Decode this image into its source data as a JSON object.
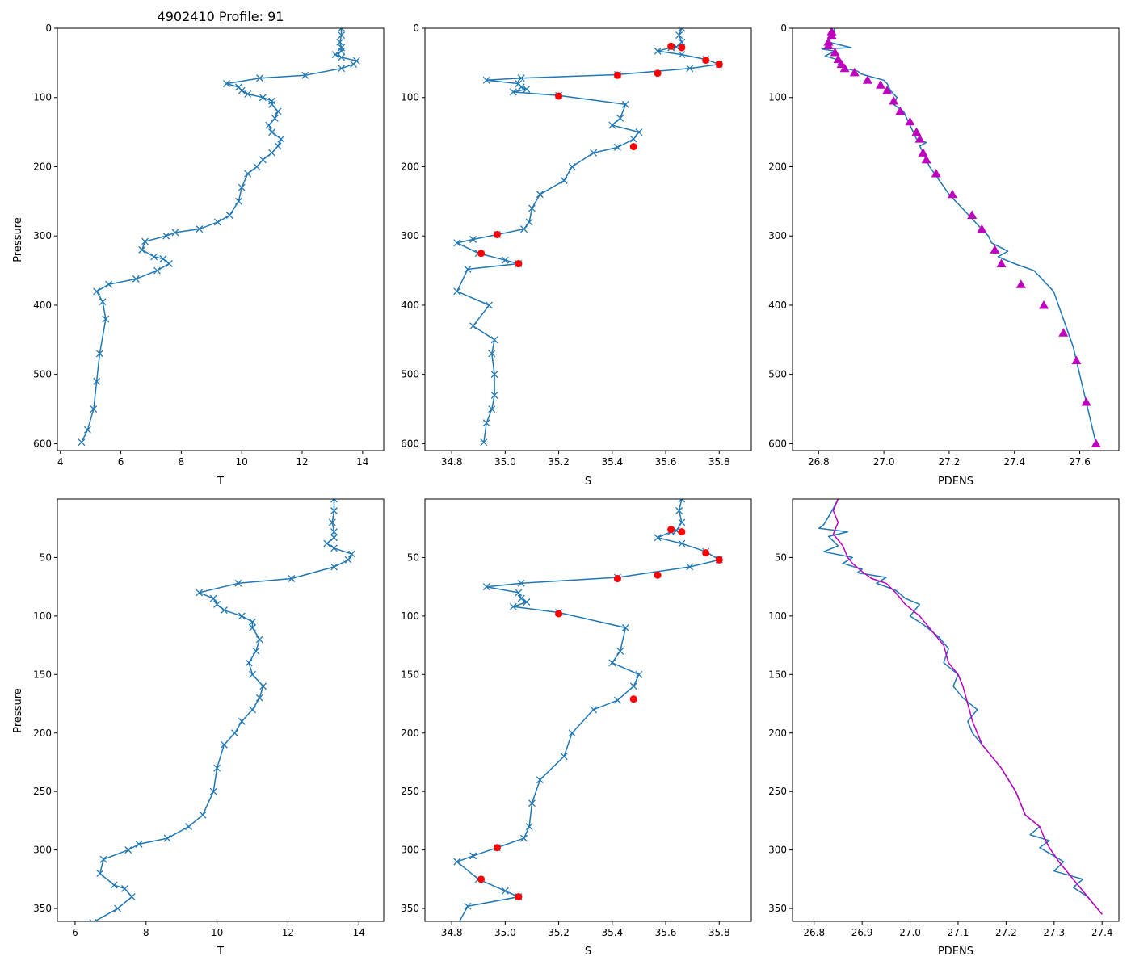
{
  "figure": {
    "title": "4902410 Profile: 91"
  },
  "styles": {
    "line": "#1f77b4",
    "marker_x": "#1f77b4",
    "flag": "#ff0000",
    "density_overlay": "#bf00bf"
  },
  "chart_data": [
    {
      "id": "temp-full",
      "type": "line",
      "title": "4902410 Profile: 91",
      "xlabel": "T",
      "ylabel": "Pressure",
      "xlim": [
        3.9,
        14.7
      ],
      "ylim": [
        610,
        0
      ],
      "xticks": [
        4,
        6,
        8,
        10,
        12,
        14
      ],
      "yticks": [
        0,
        100,
        200,
        300,
        400,
        500,
        600
      ],
      "xtick_labels": [
        "4",
        "6",
        "8",
        "10",
        "12",
        "14"
      ],
      "ytick_labels": [
        "0",
        "100",
        "200",
        "300",
        "400",
        "500",
        "600"
      ],
      "series": [
        {
          "name": "T",
          "marker": "x",
          "x": [
            13.3,
            13.3,
            13.25,
            13.3,
            13.3,
            13.1,
            13.3,
            13.8,
            13.7,
            13.3,
            12.1,
            10.6,
            9.5,
            9.9,
            10.0,
            10.2,
            10.7,
            11.0,
            11.0,
            11.2,
            11.1,
            10.9,
            11.0,
            11.3,
            11.2,
            11.0,
            10.7,
            10.5,
            10.2,
            10.0,
            9.9,
            9.6,
            9.2,
            8.6,
            7.8,
            7.5,
            6.8,
            6.7,
            7.1,
            7.4,
            7.6,
            7.2,
            6.5,
            5.6,
            5.2,
            5.4,
            5.5,
            5.3,
            5.2,
            5.1,
            4.9,
            4.7
          ],
          "y": [
            0,
            10,
            20,
            28,
            33,
            38,
            42,
            47,
            52,
            58,
            68,
            72,
            80,
            85,
            90,
            95,
            100,
            105,
            110,
            120,
            130,
            140,
            150,
            160,
            170,
            180,
            190,
            200,
            210,
            230,
            250,
            270,
            280,
            290,
            295,
            300,
            308,
            320,
            330,
            333,
            340,
            350,
            362,
            370,
            380,
            395,
            420,
            470,
            510,
            550,
            580,
            598
          ]
        }
      ]
    },
    {
      "id": "sal-full",
      "type": "line",
      "title": "",
      "xlabel": "S",
      "ylabel": "",
      "xlim": [
        34.7,
        35.92
      ],
      "ylim": [
        610,
        0
      ],
      "xticks": [
        34.8,
        35.0,
        35.2,
        35.4,
        35.6,
        35.8
      ],
      "yticks": [
        0,
        100,
        200,
        300,
        400,
        500,
        600
      ],
      "xtick_labels": [
        "34.8",
        "35.0",
        "35.2",
        "35.4",
        "35.6",
        "35.8"
      ],
      "ytick_labels": [
        "0",
        "100",
        "200",
        "300",
        "400",
        "500",
        "600"
      ],
      "series": [
        {
          "name": "S",
          "marker": "x",
          "x": [
            35.66,
            35.65,
            35.66,
            35.64,
            35.62,
            35.57,
            35.66,
            35.75,
            35.8,
            35.69,
            35.42,
            35.06,
            34.93,
            35.05,
            35.06,
            35.08,
            35.03,
            35.2,
            35.45,
            35.43,
            35.4,
            35.5,
            35.48,
            35.42,
            35.33,
            35.25,
            35.22,
            35.13,
            35.1,
            35.09,
            35.07,
            34.97,
            34.88,
            34.82,
            34.9,
            35.0,
            35.05,
            34.86,
            34.82,
            34.94,
            34.88,
            34.96,
            34.95,
            34.96,
            34.96,
            34.95,
            34.93,
            34.92
          ],
          "y": [
            0,
            10,
            20,
            27,
            28,
            33,
            38,
            45,
            52,
            58,
            67,
            72,
            75,
            80,
            85,
            88,
            92,
            97,
            110,
            130,
            140,
            150,
            160,
            172,
            180,
            200,
            220,
            240,
            260,
            280,
            290,
            298,
            305,
            310,
            325,
            335,
            340,
            348,
            380,
            400,
            430,
            450,
            470,
            500,
            530,
            550,
            570,
            598
          ]
        },
        {
          "name": "flagged",
          "marker": "circle",
          "x": [
            35.62,
            35.66,
            35.75,
            35.8,
            35.57,
            35.42,
            35.2,
            35.48,
            34.97,
            34.91,
            35.05
          ],
          "y": [
            26,
            28,
            46,
            52,
            65,
            68,
            98,
            171,
            298,
            325,
            340
          ]
        }
      ]
    },
    {
      "id": "dens-full",
      "type": "line",
      "title": "",
      "xlabel": "PDENS",
      "ylabel": "",
      "xlim": [
        26.72,
        27.72
      ],
      "ylim": [
        610,
        0
      ],
      "xticks": [
        26.8,
        27.0,
        27.2,
        27.4,
        27.6
      ],
      "yticks": [
        0,
        100,
        200,
        300,
        400,
        500,
        600
      ],
      "xtick_labels": [
        "26.8",
        "27.0",
        "27.2",
        "27.4",
        "27.6"
      ],
      "ytick_labels": [
        "0",
        "100",
        "200",
        "300",
        "400",
        "500",
        "600"
      ],
      "series": [
        {
          "name": "PDENS",
          "marker": "none",
          "x": [
            26.85,
            26.84,
            26.83,
            26.9,
            26.81,
            26.85,
            26.82,
            26.87,
            26.86,
            26.88,
            26.92,
            26.93,
            26.96,
            27.0,
            27.01,
            27.02,
            27.04,
            27.03,
            27.06,
            27.08,
            27.09,
            27.1,
            27.13,
            27.11,
            27.12,
            27.14,
            27.17,
            27.2,
            27.24,
            27.28,
            27.3,
            27.32,
            27.33,
            27.38,
            27.35,
            27.4,
            27.46,
            27.52,
            27.55,
            27.58,
            27.6,
            27.62,
            27.64,
            27.65
          ],
          "y": [
            0,
            10,
            20,
            28,
            30,
            33,
            40,
            47,
            52,
            58,
            62,
            66,
            70,
            75,
            80,
            90,
            100,
            110,
            120,
            140,
            150,
            160,
            165,
            170,
            180,
            200,
            220,
            240,
            260,
            280,
            290,
            300,
            310,
            322,
            330,
            340,
            350,
            380,
            420,
            460,
            500,
            540,
            580,
            600
          ]
        },
        {
          "name": "PDENS-triangles",
          "marker": "triangle",
          "x": [
            26.84,
            26.84,
            26.83,
            26.83,
            26.85,
            26.86,
            26.87,
            26.88,
            26.91,
            26.95,
            26.99,
            27.01,
            27.03,
            27.05,
            27.08,
            27.1,
            27.11,
            27.12,
            27.13,
            27.16,
            27.21,
            27.27,
            27.3,
            27.34,
            27.36,
            27.42,
            27.49,
            27.55,
            27.59,
            27.62,
            27.65
          ],
          "y": [
            5,
            10,
            20,
            25,
            35,
            45,
            52,
            58,
            64,
            75,
            82,
            90,
            105,
            120,
            135,
            150,
            160,
            180,
            190,
            210,
            240,
            270,
            290,
            320,
            340,
            370,
            400,
            440,
            480,
            540,
            600
          ]
        }
      ]
    },
    {
      "id": "temp-zoom",
      "type": "line",
      "title": "",
      "xlabel": "T",
      "ylabel": "Pressure",
      "xlim": [
        5.5,
        14.7
      ],
      "ylim": [
        361,
        0
      ],
      "xticks": [
        6,
        8,
        10,
        12,
        14
      ],
      "yticks": [
        50,
        100,
        150,
        200,
        250,
        300,
        350
      ],
      "xtick_labels": [
        "6",
        "8",
        "10",
        "12",
        "14"
      ],
      "ytick_labels": [
        "50",
        "100",
        "150",
        "200",
        "250",
        "300",
        "350"
      ],
      "series": [
        {
          "name": "T",
          "marker": "x",
          "x": [
            13.3,
            13.3,
            13.25,
            13.3,
            13.3,
            13.1,
            13.3,
            13.8,
            13.7,
            13.3,
            12.1,
            10.6,
            9.5,
            9.9,
            10.0,
            10.2,
            10.7,
            11.0,
            11.0,
            11.2,
            11.1,
            10.9,
            11.0,
            11.3,
            11.2,
            11.0,
            10.7,
            10.5,
            10.2,
            10.0,
            9.9,
            9.6,
            9.2,
            8.6,
            7.8,
            7.5,
            6.8,
            6.7,
            7.1,
            7.4,
            7.6,
            7.2,
            6.5
          ],
          "y": [
            0,
            10,
            20,
            28,
            33,
            38,
            42,
            47,
            52,
            58,
            68,
            72,
            80,
            85,
            90,
            95,
            100,
            105,
            110,
            120,
            130,
            140,
            150,
            160,
            170,
            180,
            190,
            200,
            210,
            230,
            250,
            270,
            280,
            290,
            295,
            300,
            308,
            320,
            330,
            333,
            340,
            350,
            362
          ]
        }
      ]
    },
    {
      "id": "sal-zoom",
      "type": "line",
      "title": "",
      "xlabel": "S",
      "ylabel": "",
      "xlim": [
        34.7,
        35.92
      ],
      "ylim": [
        361,
        0
      ],
      "xticks": [
        34.8,
        35.0,
        35.2,
        35.4,
        35.6,
        35.8
      ],
      "yticks": [
        50,
        100,
        150,
        200,
        250,
        300,
        350
      ],
      "xtick_labels": [
        "34.8",
        "35.0",
        "35.2",
        "35.4",
        "35.6",
        "35.8"
      ],
      "ytick_labels": [
        "50",
        "100",
        "150",
        "200",
        "250",
        "300",
        "350"
      ],
      "series": [
        {
          "name": "S",
          "marker": "x",
          "x": [
            35.66,
            35.65,
            35.66,
            35.64,
            35.62,
            35.57,
            35.66,
            35.75,
            35.8,
            35.69,
            35.42,
            35.06,
            34.93,
            35.05,
            35.06,
            35.08,
            35.03,
            35.2,
            35.45,
            35.43,
            35.4,
            35.5,
            35.48,
            35.42,
            35.33,
            35.25,
            35.22,
            35.13,
            35.1,
            35.09,
            35.07,
            34.97,
            34.88,
            34.82,
            34.9,
            35.0,
            35.05,
            34.86,
            34.82
          ],
          "y": [
            0,
            10,
            20,
            27,
            28,
            33,
            38,
            45,
            52,
            58,
            67,
            72,
            75,
            80,
            85,
            88,
            92,
            97,
            110,
            130,
            140,
            150,
            160,
            172,
            180,
            200,
            220,
            240,
            260,
            280,
            290,
            298,
            305,
            310,
            325,
            335,
            340,
            348,
            365
          ]
        },
        {
          "name": "flagged",
          "marker": "circle",
          "x": [
            35.62,
            35.66,
            35.75,
            35.8,
            35.57,
            35.42,
            35.2,
            35.48,
            34.97,
            34.91,
            35.05
          ],
          "y": [
            26,
            28,
            46,
            52,
            65,
            68,
            98,
            171,
            298,
            325,
            340
          ]
        }
      ]
    },
    {
      "id": "dens-zoom",
      "type": "line",
      "title": "",
      "xlabel": "PDENS",
      "ylabel": "",
      "xlim": [
        26.755,
        27.435
      ],
      "ylim": [
        361,
        0
      ],
      "xticks": [
        26.8,
        26.9,
        27.0,
        27.1,
        27.2,
        27.3,
        27.4
      ],
      "yticks": [
        50,
        100,
        150,
        200,
        250,
        300,
        350
      ],
      "xtick_labels": [
        "26.8",
        "26.9",
        "27.0",
        "27.1",
        "27.2",
        "27.3",
        "27.4"
      ],
      "ytick_labels": [
        "50",
        "100",
        "150",
        "200",
        "250",
        "300",
        "350"
      ],
      "series": [
        {
          "name": "PDENS",
          "marker": "none",
          "x": [
            26.85,
            26.84,
            26.83,
            26.82,
            26.81,
            26.87,
            26.83,
            26.85,
            26.82,
            26.88,
            26.86,
            26.9,
            26.89,
            26.95,
            26.93,
            26.97,
            26.99,
            27.02,
            27.0,
            27.03,
            27.06,
            27.08,
            27.07,
            27.1,
            27.09,
            27.11,
            27.14,
            27.12,
            27.13,
            27.15,
            27.19,
            27.22,
            27.24,
            27.27,
            27.25,
            27.29,
            27.27,
            27.32,
            27.3,
            27.36,
            27.34,
            27.37,
            27.4
          ],
          "y": [
            0,
            8,
            15,
            22,
            25,
            28,
            32,
            40,
            45,
            50,
            55,
            60,
            63,
            67,
            72,
            78,
            85,
            90,
            100,
            108,
            118,
            128,
            140,
            150,
            160,
            170,
            180,
            190,
            200,
            210,
            230,
            250,
            270,
            280,
            287,
            292,
            298,
            310,
            318,
            325,
            332,
            340,
            355
          ]
        },
        {
          "name": "PDENS-overlay",
          "marker": "none",
          "x": [
            26.85,
            26.84,
            26.85,
            26.84,
            26.86,
            26.87,
            26.88,
            26.9,
            26.92,
            26.95,
            26.97,
            26.99,
            27.02,
            27.04,
            27.07,
            27.08,
            27.1,
            27.11,
            27.12,
            27.13,
            27.15,
            27.19,
            27.22,
            27.24,
            27.27,
            27.28,
            27.29,
            27.31,
            27.33,
            27.35,
            27.37,
            27.4
          ],
          "y": [
            0,
            10,
            20,
            30,
            40,
            50,
            55,
            62,
            68,
            72,
            80,
            90,
            100,
            110,
            125,
            140,
            150,
            160,
            175,
            190,
            210,
            230,
            250,
            270,
            280,
            290,
            298,
            310,
            320,
            330,
            340,
            355
          ]
        }
      ]
    }
  ]
}
